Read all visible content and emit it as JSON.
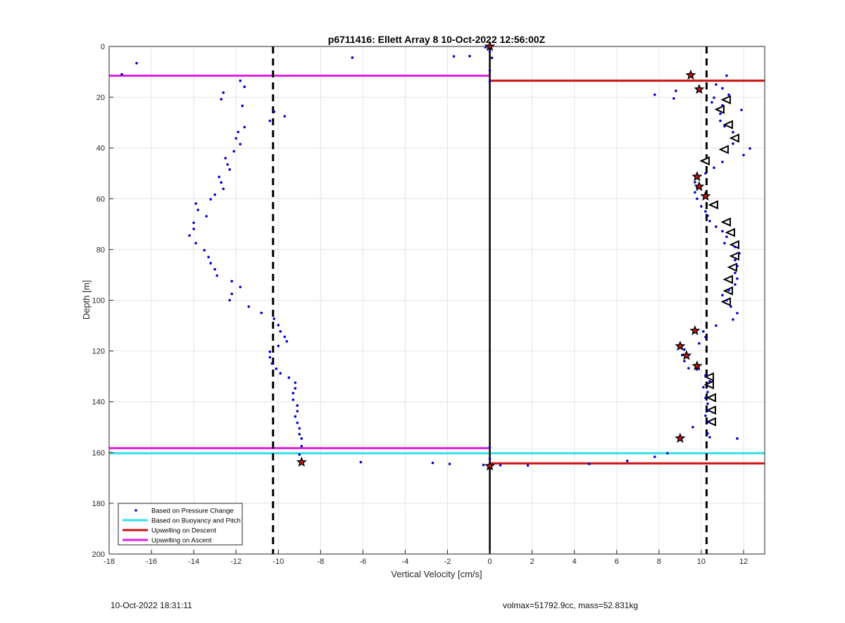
{
  "footer": {
    "timestamp": "10-Oct-2022 18:31:11",
    "params": "volmax=51792.9cc, mass=52.831kg"
  },
  "chart_data": {
    "type": "scatter",
    "title": "p6711416: Ellett Array 8 10-Oct-2022 12:56:00Z",
    "xlabel": "Vertical Velocity [cm/s]",
    "ylabel": "Depth [m]",
    "xlim": [
      -18,
      13
    ],
    "ylim": [
      0,
      200
    ],
    "y_reversed": true,
    "grid": true,
    "xticks": [
      "-18",
      "-16",
      "-14",
      "-12",
      "-10",
      "-8",
      "-6",
      "-4",
      "-2",
      "0",
      "2",
      "4",
      "6",
      "8",
      "10",
      "12"
    ],
    "yticks": [
      "0",
      "20",
      "40",
      "60",
      "80",
      "100",
      "120",
      "140",
      "160",
      "180",
      "200"
    ],
    "legend": {
      "placement": "bottom-left",
      "entries": [
        {
          "label": "Based on Pressure Change",
          "color": "#0000cc",
          "kind": "dot"
        },
        {
          "label": "Based on Buoyancy and Pitch",
          "color": "#33e0e8",
          "kind": "line"
        },
        {
          "label": "Upwelling on Descent",
          "color": "#cc1111",
          "kind": "line"
        },
        {
          "label": "Upwelling on Ascent",
          "color": "#e020e0",
          "kind": "line"
        }
      ]
    },
    "colors": {
      "pressure": "#0000cc",
      "buoyancy": "#33e0e8",
      "descent": "#cc1111",
      "ascent": "#e020e0",
      "threshold": "#000000"
    },
    "thresholds_x": [
      -10.25,
      10.25
    ],
    "zero_line_x": 0,
    "upwelling_descent": [
      {
        "y": 13.5,
        "x_from": 0,
        "x_to": 13
      },
      {
        "y": 164.3,
        "x_from": 0,
        "x_to": 13
      }
    ],
    "upwelling_ascent": [
      {
        "y": 11.5,
        "x_from": -18,
        "x_to": 0
      },
      {
        "y": 158.3,
        "x_from": -18,
        "x_to": 0
      }
    ],
    "buoyancy_pitch": [
      {
        "y": 160.3,
        "x_from": -18,
        "x_to": 13
      }
    ],
    "pressure_change": [
      [
        -0.2,
        0.3
      ],
      [
        -0.95,
        3.8
      ],
      [
        -1.7,
        3.9
      ],
      [
        -6.5,
        4.4
      ],
      [
        -16.7,
        6.6
      ],
      [
        -17.4,
        11.0
      ],
      [
        -11.8,
        13.5
      ],
      [
        -11.6,
        15.9
      ],
      [
        -12.6,
        18.2
      ],
      [
        -12.7,
        20.8
      ],
      [
        -11.7,
        23.4
      ],
      [
        -10.2,
        25.7
      ],
      [
        -10.4,
        29.3
      ],
      [
        -9.7,
        27.5
      ],
      [
        -11.6,
        31.8
      ],
      [
        -11.9,
        33.7
      ],
      [
        -12.0,
        36.2
      ],
      [
        -11.8,
        38.5
      ],
      [
        -12.1,
        41.3
      ],
      [
        -12.5,
        44.0
      ],
      [
        -12.4,
        46.5
      ],
      [
        -12.3,
        48.5
      ],
      [
        -12.8,
        51.4
      ],
      [
        -12.7,
        53.6
      ],
      [
        -12.6,
        56.1
      ],
      [
        -13.0,
        58.4
      ],
      [
        -13.2,
        60.2
      ],
      [
        -13.9,
        61.9
      ],
      [
        -13.8,
        64.4
      ],
      [
        -13.4,
        66.9
      ],
      [
        -14.0,
        69.5
      ],
      [
        -14.0,
        71.9
      ],
      [
        -14.2,
        74.5
      ],
      [
        -13.9,
        77.5
      ],
      [
        -13.5,
        80.3
      ],
      [
        -13.3,
        83.0
      ],
      [
        -13.2,
        85.4
      ],
      [
        -13.0,
        87.8
      ],
      [
        -12.9,
        90.3
      ],
      [
        -12.2,
        92.5
      ],
      [
        -11.8,
        94.8
      ],
      [
        -12.2,
        97.5
      ],
      [
        -12.3,
        100.0
      ],
      [
        -11.4,
        102.5
      ],
      [
        -10.8,
        105.0
      ],
      [
        -10.2,
        107.3
      ],
      [
        -10.0,
        109.8
      ],
      [
        -9.9,
        112.3
      ],
      [
        -9.7,
        114.4
      ],
      [
        -9.6,
        116.2
      ],
      [
        -10.0,
        118.0
      ],
      [
        -10.4,
        120.3
      ],
      [
        -10.4,
        122.5
      ],
      [
        -10.3,
        124.9
      ],
      [
        -10.1,
        127.0
      ],
      [
        -9.9,
        128.8
      ],
      [
        -9.5,
        130.5
      ],
      [
        -9.2,
        132.5
      ],
      [
        -9.2,
        134.7
      ],
      [
        -9.3,
        136.6
      ],
      [
        -9.3,
        139.2
      ],
      [
        -9.1,
        141.5
      ],
      [
        -9.1,
        143.7
      ],
      [
        -9.2,
        145.8
      ],
      [
        -9.1,
        148.3
      ],
      [
        -9.0,
        150.5
      ],
      [
        -9.0,
        152.8
      ],
      [
        -8.9,
        154.5
      ],
      [
        -8.9,
        157.5
      ],
      [
        -9.0,
        160.8
      ],
      [
        -8.9,
        164.0
      ],
      [
        -6.1,
        163.8
      ],
      [
        -2.7,
        164.1
      ],
      [
        -1.9,
        164.5
      ],
      [
        -0.3,
        164.9
      ],
      [
        0.5,
        165.0
      ],
      [
        1.8,
        165.1
      ],
      [
        4.7,
        164.5
      ],
      [
        6.5,
        163.3
      ],
      [
        7.8,
        161.7
      ],
      [
        8.4,
        160.3
      ],
      [
        9.0,
        154.8
      ],
      [
        10.4,
        154.0
      ],
      [
        11.7,
        154.5
      ],
      [
        10.3,
        152.5
      ],
      [
        9.6,
        150.0
      ],
      [
        10.3,
        148.0
      ],
      [
        10.2,
        145.5
      ],
      [
        10.3,
        143.5
      ],
      [
        10.3,
        140.8
      ],
      [
        10.2,
        138.5
      ],
      [
        10.3,
        136.2
      ],
      [
        10.1,
        134.3
      ],
      [
        10.4,
        132.0
      ],
      [
        10.2,
        129.6
      ],
      [
        9.8,
        127.3
      ],
      [
        9.4,
        126.8
      ],
      [
        9.2,
        124.0
      ],
      [
        9.1,
        121.6
      ],
      [
        9.2,
        119.4
      ],
      [
        9.9,
        117.0
      ],
      [
        10.2,
        114.5
      ],
      [
        10.1,
        112.3
      ],
      [
        10.7,
        110.0
      ],
      [
        11.5,
        107.6
      ],
      [
        11.7,
        105.1
      ],
      [
        11.4,
        102.5
      ],
      [
        11.2,
        100.0
      ],
      [
        11.0,
        98.0
      ],
      [
        11.3,
        96.0
      ],
      [
        11.6,
        93.8
      ],
      [
        11.7,
        91.5
      ],
      [
        11.6,
        89.2
      ],
      [
        11.7,
        86.5
      ],
      [
        11.6,
        84.2
      ],
      [
        11.8,
        81.5
      ],
      [
        11.6,
        79.0
      ],
      [
        11.1,
        77.5
      ],
      [
        11.2,
        75.0
      ],
      [
        11.0,
        72.8
      ],
      [
        10.7,
        71.0
      ],
      [
        10.4,
        68.8
      ],
      [
        10.3,
        66.7
      ],
      [
        10.2,
        65.0
      ],
      [
        10.0,
        63.0
      ],
      [
        9.8,
        60.0
      ],
      [
        9.7,
        57.5
      ],
      [
        9.8,
        55.5
      ],
      [
        9.7,
        53.5
      ],
      [
        10.2,
        50.0
      ],
      [
        10.6,
        47.8
      ],
      [
        11.0,
        45.5
      ],
      [
        12.3,
        40.2
      ],
      [
        12.0,
        42.8
      ],
      [
        11.5,
        38.3
      ],
      [
        11.5,
        33.8
      ],
      [
        11.1,
        31.4
      ],
      [
        10.9,
        29.3
      ],
      [
        11.9,
        25.0
      ],
      [
        10.9,
        26.5
      ],
      [
        11.0,
        23.2
      ],
      [
        10.5,
        22.0
      ],
      [
        10.6,
        20.2
      ],
      [
        11.3,
        19.0
      ],
      [
        11.0,
        16.5
      ],
      [
        10.7,
        15.0
      ],
      [
        11.2,
        11.5
      ],
      [
        9.6,
        11.0
      ],
      [
        8.8,
        17.5
      ],
      [
        8.7,
        20.5
      ],
      [
        7.8,
        19.0
      ],
      [
        0.0,
        2.0
      ],
      [
        0.1,
        4.5
      ],
      [
        0.0,
        9.5
      ],
      [
        0.0,
        13.8
      ],
      [
        0.0,
        158.0
      ],
      [
        0.0,
        162.5
      ]
    ],
    "flagged_points": [
      [
        0.0,
        0.0
      ],
      [
        9.5,
        11.3
      ],
      [
        9.9,
        16.9
      ],
      [
        9.8,
        51.3
      ],
      [
        9.9,
        55.2
      ],
      [
        10.2,
        59.0
      ],
      [
        9.7,
        112.0
      ],
      [
        9.0,
        118.1
      ],
      [
        9.3,
        121.8
      ],
      [
        9.8,
        125.9
      ],
      [
        9.0,
        154.4
      ],
      [
        -8.9,
        163.8
      ],
      [
        0.0,
        165.3
      ]
    ],
    "ascent_markers": [
      [
        11.2,
        21.0
      ],
      [
        10.9,
        24.8
      ],
      [
        11.3,
        30.8
      ],
      [
        11.6,
        36.1
      ],
      [
        11.1,
        40.6
      ],
      [
        10.2,
        45.1
      ],
      [
        10.6,
        62.4
      ],
      [
        11.2,
        69.2
      ],
      [
        11.4,
        73.3
      ],
      [
        11.6,
        78.1
      ],
      [
        11.6,
        82.6
      ],
      [
        11.5,
        87.0
      ],
      [
        11.3,
        91.8
      ],
      [
        11.3,
        96.3
      ],
      [
        11.2,
        100.6
      ],
      [
        10.4,
        130.2
      ],
      [
        10.4,
        133.3
      ],
      [
        10.5,
        138.4
      ],
      [
        10.5,
        143.3
      ],
      [
        10.5,
        147.9
      ]
    ]
  }
}
